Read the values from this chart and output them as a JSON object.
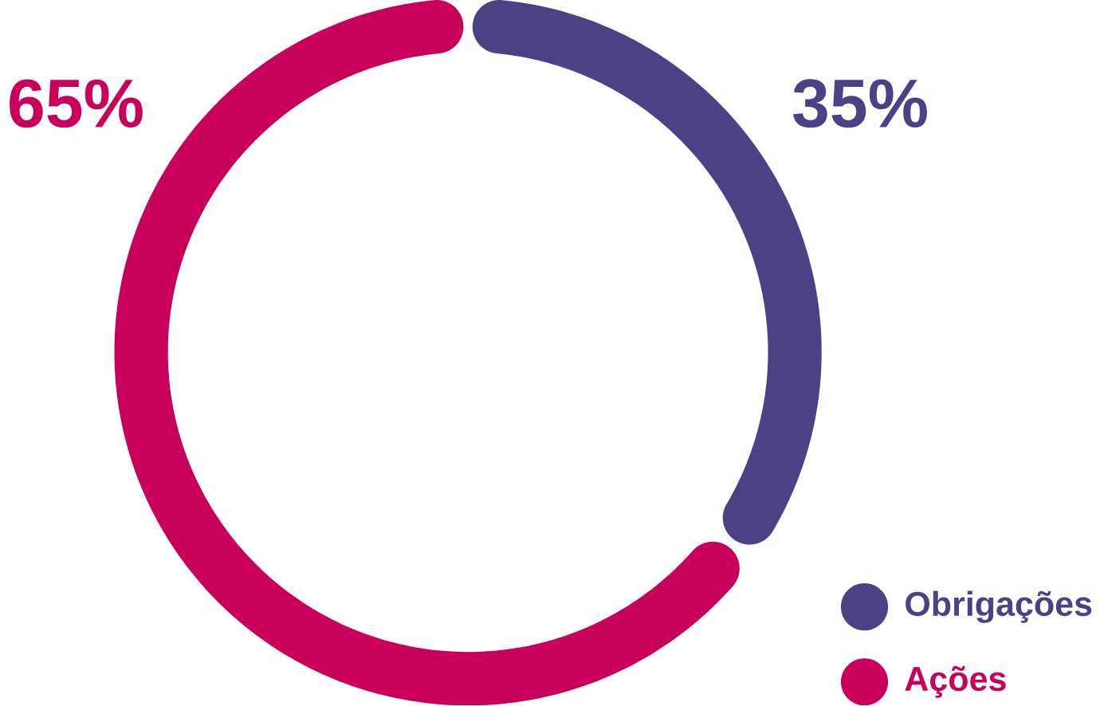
{
  "chart_data": {
    "type": "donut",
    "categories": [
      "Obrigações",
      "Ações"
    ],
    "values": [
      35,
      65
    ],
    "colors": [
      "#4b4184",
      "#c8005c"
    ],
    "value_labels": [
      "35%",
      "65%"
    ],
    "legend": "bottom right"
  }
}
